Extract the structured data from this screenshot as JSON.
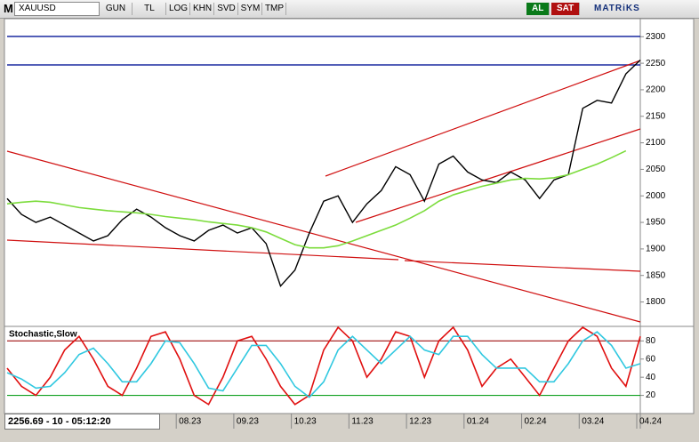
{
  "toolbar": {
    "logo": "M",
    "symbol": "XAUUSD",
    "buttons": [
      "GUN",
      "TL",
      "LOG",
      "KHN",
      "SVD",
      "SYM",
      "TMP"
    ],
    "buy": "AL",
    "sell": "SAT",
    "brand": "MATRiKS"
  },
  "chart_data": [
    {
      "type": "line",
      "categories": [
        null,
        null,
        null,
        null,
        null,
        null,
        null,
        null,
        null,
        null,
        null,
        null,
        "08.23",
        null,
        null,
        null,
        "09.23",
        null,
        null,
        null,
        "10.23",
        null,
        null,
        null,
        "11.23",
        null,
        null,
        null,
        "12.23",
        null,
        null,
        null,
        "01.24",
        null,
        null,
        null,
        "02.24",
        null,
        null,
        null,
        "03.24",
        null,
        null,
        null,
        "04.24"
      ],
      "series": [
        {
          "color": "#000000",
          "values": [
            1995,
            1965,
            1950,
            1960,
            1945,
            1930,
            1915,
            1925,
            1955,
            1975,
            1960,
            1940,
            1925,
            1915,
            1935,
            1945,
            1930,
            1940,
            1910,
            1830,
            1860,
            1930,
            1990,
            2000,
            1950,
            1985,
            2010,
            2055,
            2040,
            1990,
            2060,
            2075,
            2045,
            2030,
            2025,
            2045,
            2030,
            1995,
            2030,
            2040,
            2165,
            2180,
            2175,
            2230,
            2256
          ]
        },
        {
          "color": "#7cdc3c",
          "values": [
            1985,
            1988,
            1990,
            1988,
            1983,
            1978,
            1975,
            1972,
            1970,
            1968,
            1965,
            1961,
            1958,
            1955,
            1951,
            1948,
            1945,
            1940,
            1932,
            1920,
            1908,
            1902,
            1902,
            1906,
            1915,
            1925,
            1935,
            1945,
            1958,
            1972,
            1990,
            2002,
            2010,
            2018,
            2024,
            2030,
            2033,
            2032,
            2034,
            2040,
            2050,
            2060,
            2072,
            2085,
            null
          ]
        }
      ],
      "ylim": [
        1754,
        2334
      ],
      "yticks": [
        1800,
        1850,
        1900,
        1950,
        2000,
        2050,
        2100,
        2150,
        2200,
        2250,
        2300
      ],
      "grid": false
    },
    {
      "type": "line",
      "title": "Stochastic,Slow",
      "series": [
        {
          "color": "#e01010",
          "values": [
            50,
            30,
            20,
            40,
            70,
            85,
            60,
            30,
            20,
            50,
            85,
            90,
            60,
            20,
            10,
            40,
            80,
            85,
            60,
            30,
            10,
            20,
            70,
            95,
            80,
            40,
            60,
            90,
            85,
            40,
            80,
            95,
            70,
            30,
            50,
            60,
            40,
            20,
            50,
            80,
            95,
            85,
            50,
            30,
            85
          ]
        },
        {
          "color": "#30c8e0",
          "values": [
            45,
            38,
            28,
            30,
            45,
            65,
            72,
            55,
            35,
            35,
            55,
            80,
            78,
            55,
            28,
            25,
            50,
            75,
            75,
            55,
            30,
            18,
            35,
            70,
            85,
            70,
            55,
            70,
            85,
            70,
            65,
            85,
            85,
            65,
            50,
            50,
            50,
            35,
            35,
            55,
            80,
            90,
            75,
            50,
            55
          ]
        }
      ],
      "levels": [
        {
          "value": 80,
          "color": "#a01010"
        },
        {
          "value": 20,
          "color": "#10a020"
        }
      ],
      "ylim": [
        0,
        96
      ],
      "yticks": [
        20,
        40,
        60,
        80
      ],
      "grid": false
    }
  ],
  "status": "2256.69 - 10 - 05:12:20"
}
